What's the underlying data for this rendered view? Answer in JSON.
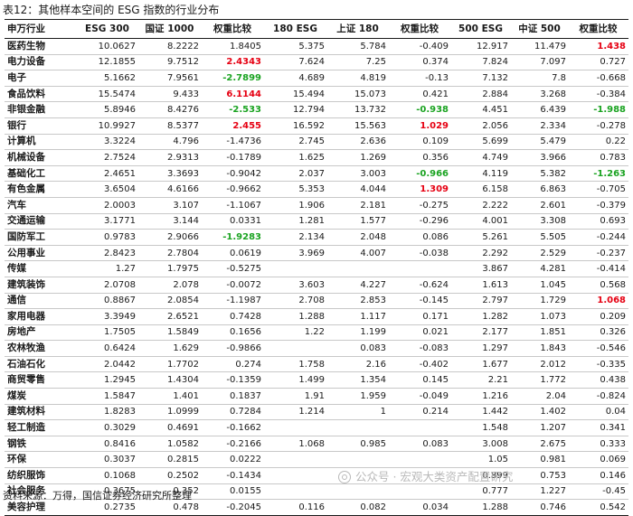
{
  "caption": "表12：其他样本空间的 ESG 指数的行业分布",
  "source": "资料来源：万得，国信证券经济研究所整理",
  "watermark": "公众号 · 宏观大类资产配置研究",
  "headers": [
    "申万行业",
    "ESG 300",
    "国证 1000",
    "权重比较",
    "180 ESG",
    "上证 180",
    "权重比较",
    "500 ESG",
    "中证 500",
    "权重比较"
  ],
  "highlight_colors": {
    "positive": "#e60012",
    "negative": "#1aa321"
  },
  "rows": [
    {
      "industry": "医药生物",
      "values": [
        "10.0627",
        "8.2222",
        "1.8405",
        "5.375",
        "5.784",
        "-0.409",
        "12.917",
        "11.479",
        "1.438"
      ],
      "hl": [
        "",
        "",
        "",
        "",
        "",
        "",
        "",
        "",
        "pos"
      ]
    },
    {
      "industry": "电力设备",
      "values": [
        "12.1855",
        "9.7512",
        "2.4343",
        "7.624",
        "7.25",
        "0.374",
        "7.824",
        "7.097",
        "0.727"
      ],
      "hl": [
        "",
        "",
        "pos",
        "",
        "",
        "",
        "",
        "",
        ""
      ]
    },
    {
      "industry": "电子",
      "values": [
        "5.1662",
        "7.9561",
        "-2.7899",
        "4.689",
        "4.819",
        "-0.13",
        "7.132",
        "7.8",
        "-0.668"
      ],
      "hl": [
        "",
        "",
        "neg",
        "",
        "",
        "",
        "",
        "",
        ""
      ]
    },
    {
      "industry": "食品饮料",
      "values": [
        "15.5474",
        "9.433",
        "6.1144",
        "15.494",
        "15.073",
        "0.421",
        "2.884",
        "3.268",
        "-0.384"
      ],
      "hl": [
        "",
        "",
        "pos",
        "",
        "",
        "",
        "",
        "",
        ""
      ]
    },
    {
      "industry": "非银金融",
      "values": [
        "5.8946",
        "8.4276",
        "-2.533",
        "12.794",
        "13.732",
        "-0.938",
        "4.451",
        "6.439",
        "-1.988"
      ],
      "hl": [
        "",
        "",
        "neg",
        "",
        "",
        "neg",
        "",
        "",
        "neg"
      ]
    },
    {
      "industry": "银行",
      "values": [
        "10.9927",
        "8.5377",
        "2.455",
        "16.592",
        "15.563",
        "1.029",
        "2.056",
        "2.334",
        "-0.278"
      ],
      "hl": [
        "",
        "",
        "pos",
        "",
        "",
        "pos",
        "",
        "",
        ""
      ]
    },
    {
      "industry": "计算机",
      "values": [
        "3.3224",
        "4.796",
        "-1.4736",
        "2.745",
        "2.636",
        "0.109",
        "5.699",
        "5.479",
        "0.22"
      ],
      "hl": [
        "",
        "",
        "",
        "",
        "",
        "",
        "",
        "",
        ""
      ]
    },
    {
      "industry": "机械设备",
      "values": [
        "2.7524",
        "2.9313",
        "-0.1789",
        "1.625",
        "1.269",
        "0.356",
        "4.749",
        "3.966",
        "0.783"
      ],
      "hl": [
        "",
        "",
        "",
        "",
        "",
        "",
        "",
        "",
        ""
      ]
    },
    {
      "industry": "基础化工",
      "values": [
        "2.4651",
        "3.3693",
        "-0.9042",
        "2.037",
        "3.003",
        "-0.966",
        "4.119",
        "5.382",
        "-1.263"
      ],
      "hl": [
        "",
        "",
        "",
        "",
        "",
        "neg",
        "",
        "",
        "neg"
      ]
    },
    {
      "industry": "有色金属",
      "values": [
        "3.6504",
        "4.6166",
        "-0.9662",
        "5.353",
        "4.044",
        "1.309",
        "6.158",
        "6.863",
        "-0.705"
      ],
      "hl": [
        "",
        "",
        "",
        "",
        "",
        "pos",
        "",
        "",
        ""
      ]
    },
    {
      "industry": "汽车",
      "values": [
        "2.0003",
        "3.107",
        "-1.1067",
        "1.906",
        "2.181",
        "-0.275",
        "2.222",
        "2.601",
        "-0.379"
      ],
      "hl": [
        "",
        "",
        "",
        "",
        "",
        "",
        "",
        "",
        ""
      ]
    },
    {
      "industry": "交通运输",
      "values": [
        "3.1771",
        "3.144",
        "0.0331",
        "1.281",
        "1.577",
        "-0.296",
        "4.001",
        "3.308",
        "0.693"
      ],
      "hl": [
        "",
        "",
        "",
        "",
        "",
        "",
        "",
        "",
        ""
      ]
    },
    {
      "industry": "国防军工",
      "values": [
        "0.9783",
        "2.9066",
        "-1.9283",
        "2.134",
        "2.048",
        "0.086",
        "5.261",
        "5.505",
        "-0.244"
      ],
      "hl": [
        "",
        "",
        "neg",
        "",
        "",
        "",
        "",
        "",
        ""
      ]
    },
    {
      "industry": "公用事业",
      "values": [
        "2.8423",
        "2.7804",
        "0.0619",
        "3.969",
        "4.007",
        "-0.038",
        "2.292",
        "2.529",
        "-0.237"
      ],
      "hl": [
        "",
        "",
        "",
        "",
        "",
        "",
        "",
        "",
        ""
      ]
    },
    {
      "industry": "传媒",
      "values": [
        "1.27",
        "1.7975",
        "-0.5275",
        "",
        "",
        "",
        "3.867",
        "4.281",
        "-0.414"
      ],
      "hl": [
        "",
        "",
        "",
        "",
        "",
        "",
        "",
        "",
        ""
      ]
    },
    {
      "industry": "建筑装饰",
      "values": [
        "2.0708",
        "2.078",
        "-0.0072",
        "3.603",
        "4.227",
        "-0.624",
        "1.613",
        "1.045",
        "0.568"
      ],
      "hl": [
        "",
        "",
        "",
        "",
        "",
        "",
        "",
        "",
        ""
      ]
    },
    {
      "industry": "通信",
      "values": [
        "0.8867",
        "2.0854",
        "-1.1987",
        "2.708",
        "2.853",
        "-0.145",
        "2.797",
        "1.729",
        "1.068"
      ],
      "hl": [
        "",
        "",
        "",
        "",
        "",
        "",
        "",
        "",
        "pos"
      ]
    },
    {
      "industry": "家用电器",
      "values": [
        "3.3949",
        "2.6521",
        "0.7428",
        "1.288",
        "1.117",
        "0.171",
        "1.282",
        "1.073",
        "0.209"
      ],
      "hl": [
        "",
        "",
        "",
        "",
        "",
        "",
        "",
        "",
        ""
      ]
    },
    {
      "industry": "房地产",
      "values": [
        "1.7505",
        "1.5849",
        "0.1656",
        "1.22",
        "1.199",
        "0.021",
        "2.177",
        "1.851",
        "0.326"
      ],
      "hl": [
        "",
        "",
        "",
        "",
        "",
        "",
        "",
        "",
        ""
      ]
    },
    {
      "industry": "农林牧渔",
      "values": [
        "0.6424",
        "1.629",
        "-0.9866",
        "",
        "0.083",
        "-0.083",
        "1.297",
        "1.843",
        "-0.546"
      ],
      "hl": [
        "",
        "",
        "",
        "",
        "",
        "",
        "",
        "",
        ""
      ]
    },
    {
      "industry": "石油石化",
      "values": [
        "2.0442",
        "1.7702",
        "0.274",
        "1.758",
        "2.16",
        "-0.402",
        "1.677",
        "2.012",
        "-0.335"
      ],
      "hl": [
        "",
        "",
        "",
        "",
        "",
        "",
        "",
        "",
        ""
      ]
    },
    {
      "industry": "商贸零售",
      "values": [
        "1.2945",
        "1.4304",
        "-0.1359",
        "1.499",
        "1.354",
        "0.145",
        "2.21",
        "1.772",
        "0.438"
      ],
      "hl": [
        "",
        "",
        "",
        "",
        "",
        "",
        "",
        "",
        ""
      ]
    },
    {
      "industry": "煤炭",
      "values": [
        "1.5847",
        "1.401",
        "0.1837",
        "1.91",
        "1.959",
        "-0.049",
        "1.216",
        "2.04",
        "-0.824"
      ],
      "hl": [
        "",
        "",
        "",
        "",
        "",
        "",
        "",
        "",
        ""
      ]
    },
    {
      "industry": "建筑材料",
      "values": [
        "1.8283",
        "1.0999",
        "0.7284",
        "1.214",
        "1",
        "0.214",
        "1.442",
        "1.402",
        "0.04"
      ],
      "hl": [
        "",
        "",
        "",
        "",
        "",
        "",
        "",
        "",
        ""
      ]
    },
    {
      "industry": "轻工制造",
      "values": [
        "0.3029",
        "0.4691",
        "-0.1662",
        "",
        "",
        "",
        "1.548",
        "1.207",
        "0.341"
      ],
      "hl": [
        "",
        "",
        "",
        "",
        "",
        "",
        "",
        "",
        ""
      ]
    },
    {
      "industry": "钢铁",
      "values": [
        "0.8416",
        "1.0582",
        "-0.2166",
        "1.068",
        "0.985",
        "0.083",
        "3.008",
        "2.675",
        "0.333"
      ],
      "hl": [
        "",
        "",
        "",
        "",
        "",
        "",
        "",
        "",
        ""
      ]
    },
    {
      "industry": "环保",
      "values": [
        "0.3037",
        "0.2815",
        "0.0222",
        "",
        "",
        "",
        "1.05",
        "0.981",
        "0.069"
      ],
      "hl": [
        "",
        "",
        "",
        "",
        "",
        "",
        "",
        "",
        ""
      ]
    },
    {
      "industry": "纺织服饰",
      "values": [
        "0.1068",
        "0.2502",
        "-0.1434",
        "",
        "",
        "",
        "0.899",
        "0.753",
        "0.146"
      ],
      "hl": [
        "",
        "",
        "",
        "",
        "",
        "",
        "",
        "",
        ""
      ]
    },
    {
      "industry": "社会服务",
      "values": [
        "0.3675",
        "0.352",
        "0.0155",
        "",
        "",
        "",
        "0.777",
        "1.227",
        "-0.45"
      ],
      "hl": [
        "",
        "",
        "",
        "",
        "",
        "",
        "",
        "",
        ""
      ]
    },
    {
      "industry": "美容护理",
      "values": [
        "0.2735",
        "0.478",
        "-0.2045",
        "0.116",
        "0.082",
        "0.034",
        "1.288",
        "0.746",
        "0.542"
      ],
      "hl": [
        "",
        "",
        "",
        "",
        "",
        "",
        "",
        "",
        ""
      ]
    }
  ]
}
